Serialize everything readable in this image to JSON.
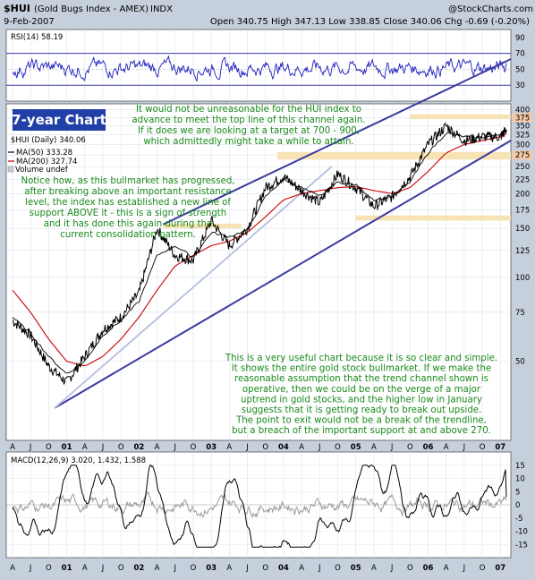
{
  "header": {
    "symbol": "$HUI",
    "name": "(Gold Bugs Index - AMEX)",
    "exchange": "INDX",
    "credit": "@StockCharts.com",
    "date": "9-Feb-2007",
    "ohlc": "Open 340.75   High 347.13   Low 338.85   Close 340.06   Chg -0.69 (-0.20%)"
  },
  "colors": {
    "frame_bg": "#c6d0dc",
    "panel_bg": "#ffffff",
    "channel": "#3a3aa0",
    "trend_light": "#b4bedf",
    "ma50": "#000000",
    "ma200": "#cc0000",
    "price": "#000000",
    "rsi": "#2020c0",
    "support_band": "#f7e3b6",
    "annotation": "#1a8a1a"
  },
  "chart_data": [
    {
      "panel": "rsi",
      "type": "line",
      "label": "RSI(14) 58.19",
      "ylim": [
        10,
        100
      ],
      "y_ticks": [
        30,
        50,
        70,
        90
      ],
      "reference_lines": [
        30,
        70
      ],
      "last_value": 58.19
    },
    {
      "panel": "price",
      "type": "line",
      "scale": "log",
      "ylim": [
        26,
        420
      ],
      "y_ticks": [
        400,
        375,
        350,
        325,
        300,
        275,
        250,
        225,
        200,
        175,
        150,
        125,
        100,
        75,
        50
      ],
      "highlighted_ticks": [
        375,
        275
      ],
      "x": [
        "2000-04",
        "2000-07",
        "2000-10",
        "2001-01",
        "2001-04",
        "2001-07",
        "2001-10",
        "2002-01",
        "2002-04",
        "2002-07",
        "2002-10",
        "2003-01",
        "2003-04",
        "2003-07",
        "2003-10",
        "2004-01",
        "2004-04",
        "2004-07",
        "2004-10",
        "2005-01",
        "2005-04",
        "2005-07",
        "2005-10",
        "2006-01",
        "2006-04",
        "2006-07",
        "2006-10",
        "2007-01",
        "2007-02"
      ],
      "series": [
        {
          "name": "$HUI (Daily) 340.06",
          "values": [
            70,
            62,
            48,
            42,
            52,
            65,
            72,
            88,
            150,
            120,
            115,
            160,
            130,
            150,
            210,
            230,
            205,
            185,
            235,
            210,
            180,
            195,
            230,
            300,
            350,
            310,
            320,
            320,
            340
          ]
        },
        {
          "name": "MA(50) 333.28",
          "values": [
            72,
            63,
            52,
            45,
            50,
            62,
            70,
            82,
            120,
            130,
            118,
            145,
            140,
            148,
            195,
            225,
            210,
            195,
            220,
            215,
            190,
            195,
            220,
            280,
            330,
            320,
            318,
            325,
            333
          ]
        },
        {
          "name": "MA(200) 327.74",
          "values": [
            90,
            75,
            60,
            50,
            48,
            52,
            60,
            72,
            90,
            110,
            120,
            130,
            135,
            145,
            165,
            190,
            200,
            205,
            210,
            212,
            205,
            200,
            210,
            240,
            280,
            300,
            310,
            320,
            328
          ]
        }
      ],
      "legend": [
        "$HUI (Daily) 340.06",
        "MA(50) 333.28",
        "MA(200) 327.74",
        "Volume undef"
      ],
      "support_bands": [
        [
          265,
          282
        ],
        [
          160,
          167
        ],
        [
          150,
          156
        ],
        [
          370,
          385
        ]
      ],
      "channel_lower": {
        "from": [
          "2000-11",
          34
        ],
        "to": [
          "2007-02",
          310
        ]
      },
      "channel_upper": {
        "from": [
          "2002-05",
          155
        ],
        "to": [
          "2007-02",
          920
        ]
      },
      "x_ticks": [
        "A",
        "J",
        "O",
        "01",
        "A",
        "J",
        "O",
        "02",
        "A",
        "J",
        "O",
        "03",
        "A",
        "J",
        "O",
        "04",
        "A",
        "J",
        "O",
        "05",
        "A",
        "J",
        "O",
        "06",
        "A",
        "J",
        "O",
        "07"
      ]
    },
    {
      "panel": "macd",
      "type": "line",
      "label": "MACD(12,26,9) 3.020, 1.432, 1.588",
      "ylim": [
        -20,
        20
      ],
      "y_ticks": [
        15,
        10,
        5,
        0,
        -5,
        -10,
        -15
      ],
      "values": [
        3.02,
        1.432,
        1.588
      ]
    }
  ],
  "annotations": {
    "title_box": "7-year Chart",
    "target_note": [
      "It would not be unreasonable for the HUI index to",
      "advance to meet the top line of this channel again.",
      "If it does we are looking at a target at 700 - 900,",
      "which admittedly might take a while to attain."
    ],
    "support_note": [
      "Notice how, as this bullmarket has progressed,",
      "after breaking above an important resistance",
      "level, the index has established a new line of",
      "support ABOVE it - this is a sign of strength",
      "and it has done this again during the",
      "current consolidation pattern."
    ],
    "summary_note": [
      "This is a very useful chart because it is so clear and simple.",
      "It shows the entire gold stock bullmarket. If we make the",
      "reasonable assumption that the trend channel shown is",
      "operative, then we could be on the verge of a major",
      "uptrend in gold stocks, and the higher low in January",
      "suggests that it is getting ready to break out upside.",
      "The point to exit would not be a break of the trendline,",
      "but a breach of the important support at and above 270."
    ]
  }
}
